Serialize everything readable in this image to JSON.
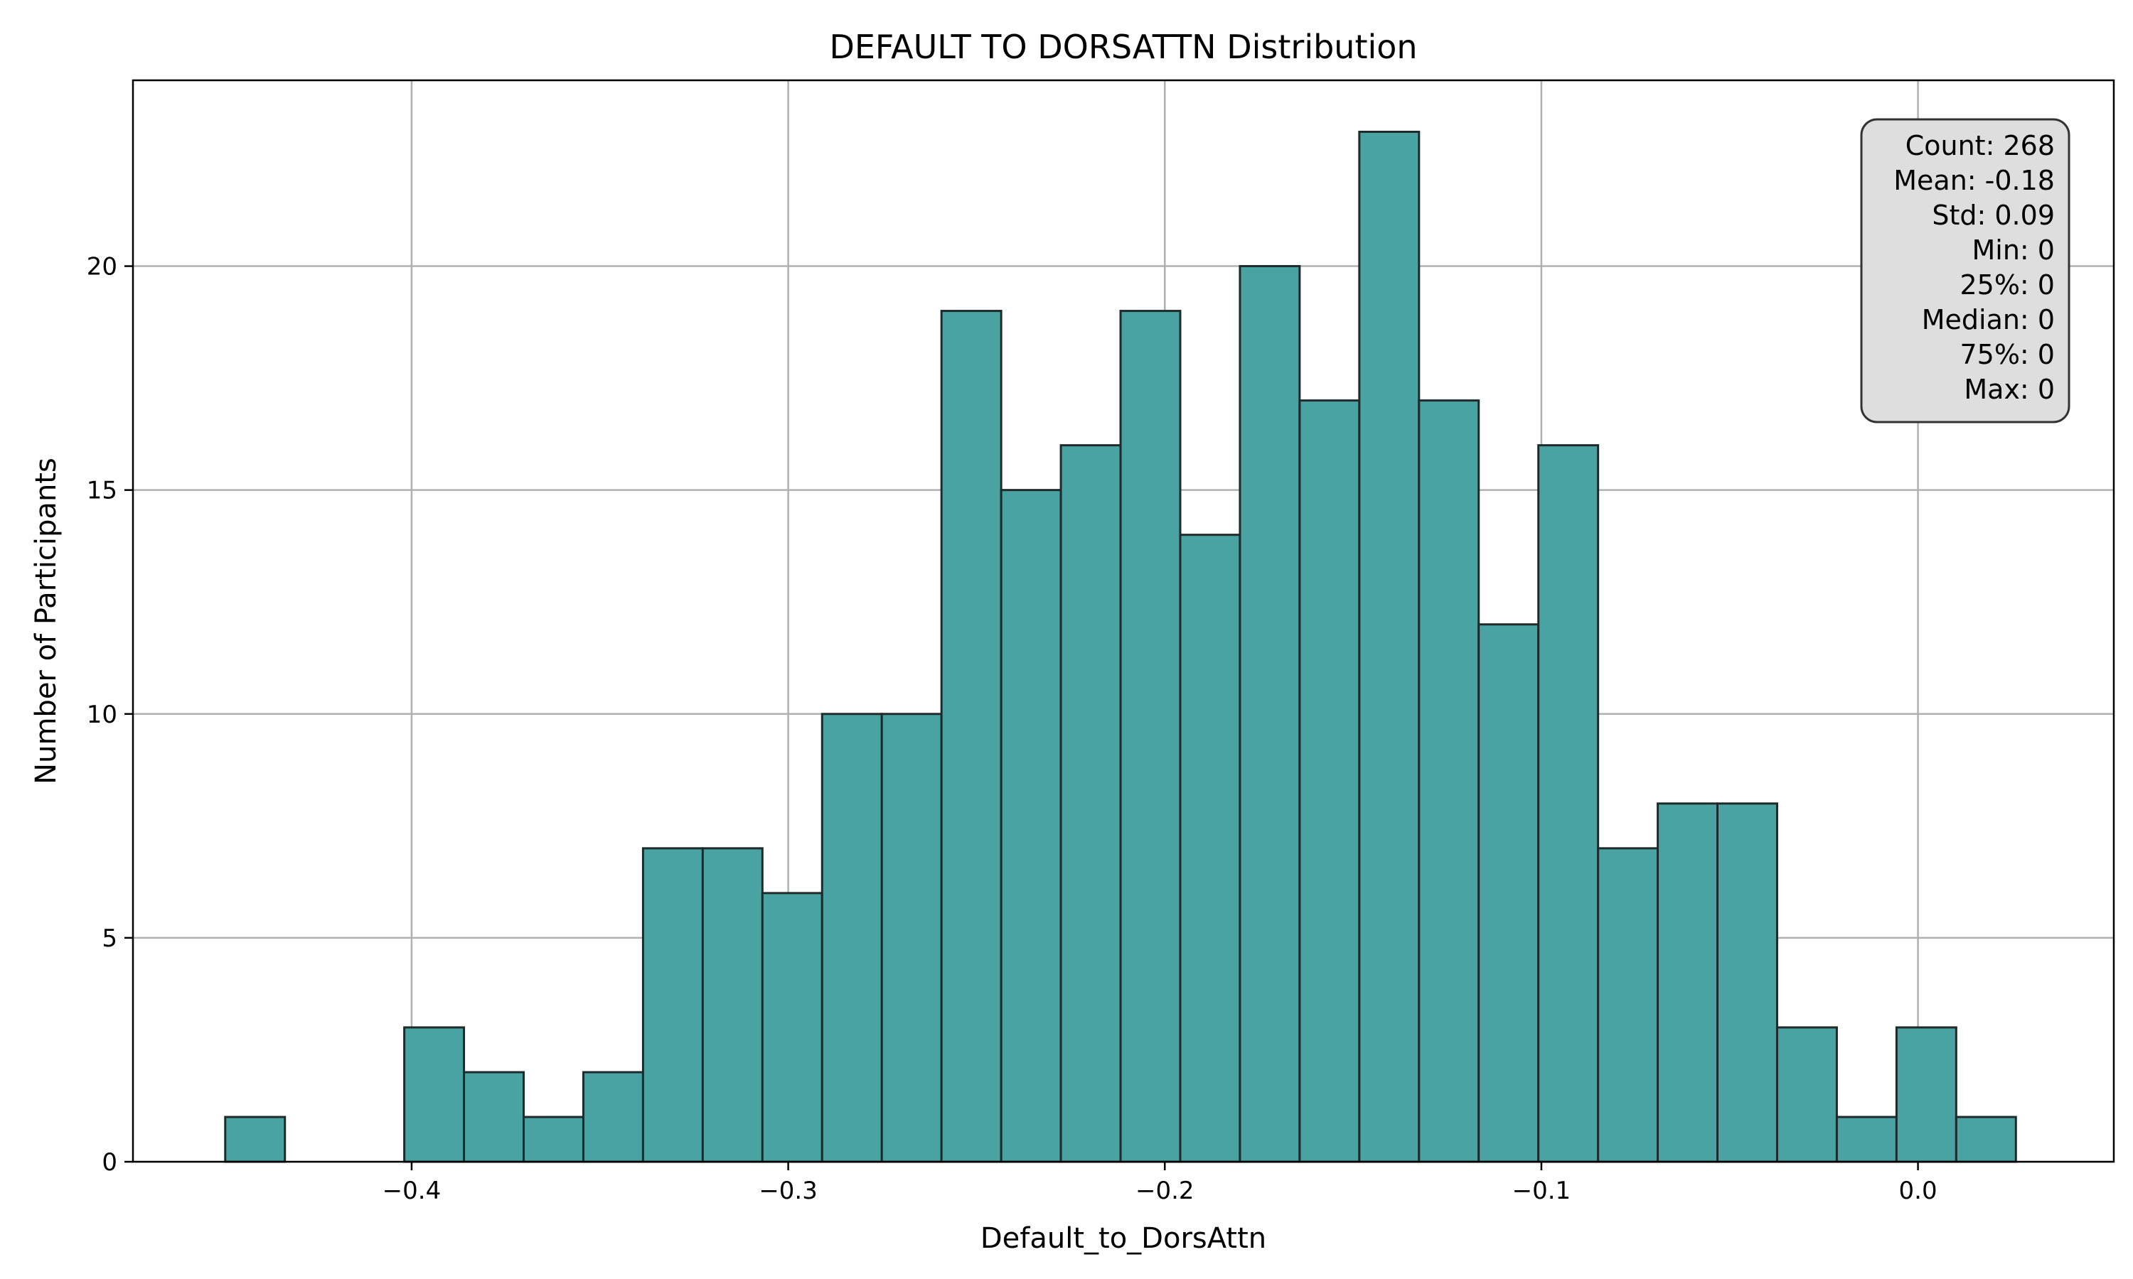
{
  "chart_data": {
    "type": "bar",
    "title": "DEFAULT TO DORSATTN Distribution",
    "xlabel": "Default_to_DorsAttn",
    "ylabel": "Number of Participants",
    "bin_start": -0.4495,
    "bin_width": 0.01585,
    "counts": [
      1,
      0,
      0,
      3,
      2,
      1,
      2,
      7,
      7,
      6,
      10,
      10,
      19,
      15,
      16,
      19,
      14,
      20,
      17,
      23,
      17,
      12,
      16,
      7,
      8,
      8,
      3,
      1,
      3,
      1
    ],
    "xlim": [
      -0.474,
      0.052
    ],
    "ylim": [
      0,
      24.15
    ],
    "xticks": [
      -0.4,
      -0.3,
      -0.2,
      -0.1,
      0.0
    ],
    "xtick_labels": [
      "−0.4",
      "−0.3",
      "−0.2",
      "−0.1",
      "0.0"
    ],
    "yticks": [
      0,
      5,
      10,
      15,
      20
    ],
    "ytick_labels": [
      "0",
      "5",
      "10",
      "15",
      "20"
    ],
    "grid": true,
    "bar_color": "#4aa3a3",
    "stats_box": [
      "Count: 268",
      "Mean: -0.18",
      "Std: 0.09",
      "Min: 0",
      "25%: 0",
      "Median: 0",
      "75%: 0",
      "Max: 0"
    ]
  }
}
